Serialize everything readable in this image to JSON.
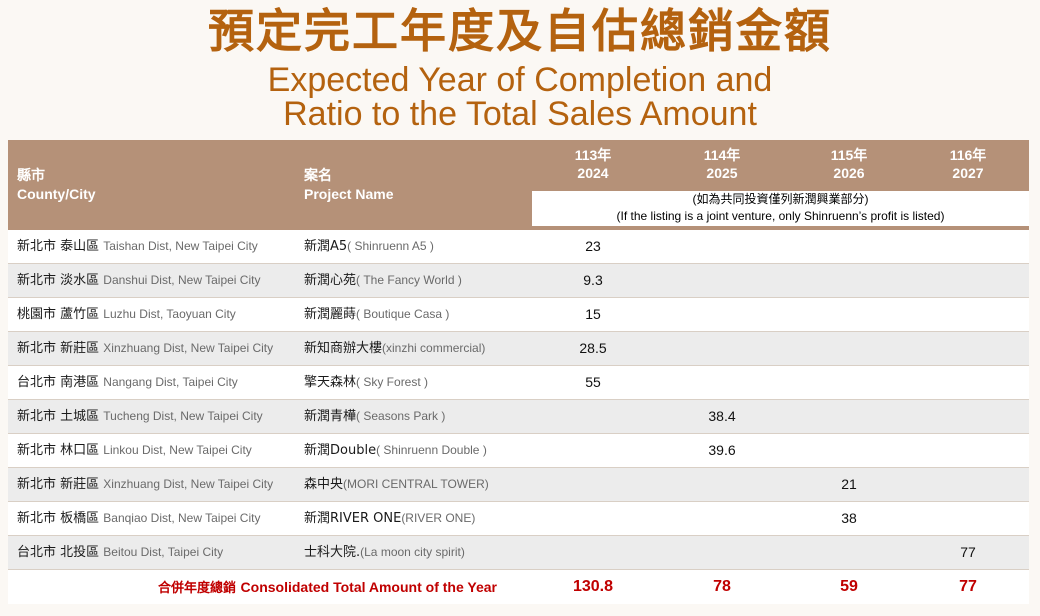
{
  "title": {
    "zh": "預定完工年度及自估總銷金額",
    "en_line1": "Expected Year of Completion and",
    "en_line2": "Ratio to the Total Sales Amount"
  },
  "table": {
    "headers": {
      "county_zh": "縣市",
      "county_en": "County/City",
      "project_zh": "案名",
      "project_en": "Project Name",
      "years": [
        {
          "roc": "113年",
          "ad": "2024"
        },
        {
          "roc": "114年",
          "ad": "2025"
        },
        {
          "roc": "115年",
          "ad": "2026"
        },
        {
          "roc": "116年",
          "ad": "2027"
        }
      ],
      "note_zh": "(如為共同投資僅列新潤興業部分)",
      "note_en": "(If the listing is a joint venture, only Shinruenn’s profit is listed)"
    },
    "rows": [
      {
        "county_zh": "新北市 泰山區",
        "county_en": "Taishan Dist, New Taipei City",
        "project_zh": "新潤A5",
        "project_en": "( Shinruenn A5 )",
        "v2024": "23",
        "v2025": "",
        "v2026": "",
        "v2027": ""
      },
      {
        "county_zh": "新北市 淡水區",
        "county_en": "Danshui Dist, New Taipei City",
        "project_zh": "新潤心苑",
        "project_en": "( The Fancy World )",
        "v2024": "9.3",
        "v2025": "",
        "v2026": "",
        "v2027": ""
      },
      {
        "county_zh": "桃園市 蘆竹區",
        "county_en": "Luzhu Dist, Taoyuan City",
        "project_zh": "新潤麗蒔",
        "project_en": "( Boutique Casa )",
        "v2024": "15",
        "v2025": "",
        "v2026": "",
        "v2027": ""
      },
      {
        "county_zh": "新北市 新莊區",
        "county_en": "Xinzhuang Dist, New Taipei City",
        "project_zh": "新知商辦大樓",
        "project_en": "(xinzhi commercial)",
        "v2024": "28.5",
        "v2025": "",
        "v2026": "",
        "v2027": ""
      },
      {
        "county_zh": "台北市 南港區",
        "county_en": "Nangang Dist, Taipei City",
        "project_zh": "擎天森林",
        "project_en": "( Sky Forest )",
        "v2024": "55",
        "v2025": "",
        "v2026": "",
        "v2027": ""
      },
      {
        "county_zh": "新北市 土城區",
        "county_en": "Tucheng Dist, New Taipei City",
        "project_zh": "新潤青樺",
        "project_en": "( Seasons Park )",
        "v2024": "",
        "v2025": "38.4",
        "v2026": "",
        "v2027": ""
      },
      {
        "county_zh": "新北市 林口區",
        "county_en": "Linkou Dist, New Taipei City",
        "project_zh": "新潤Double",
        "project_en": "( Shinruenn Double )",
        "v2024": "",
        "v2025": "39.6",
        "v2026": "",
        "v2027": ""
      },
      {
        "county_zh": "新北市 新莊區",
        "county_en": "Xinzhuang Dist, New Taipei City",
        "project_zh": "森中央",
        "project_en": "(MORI CENTRAL TOWER)",
        "v2024": "",
        "v2025": "",
        "v2026": "21",
        "v2027": ""
      },
      {
        "county_zh": "新北市 板橋區",
        "county_en": "Banqiao Dist, New Taipei City",
        "project_zh": "新潤RIVER ONE",
        "project_en": "(RIVER ONE)",
        "v2024": "",
        "v2025": "",
        "v2026": "38",
        "v2027": ""
      },
      {
        "county_zh": "台北市 北投區",
        "county_en": "Beitou Dist, Taipei City",
        "project_zh": "士科大院.",
        "project_en": "(La moon city spirit)",
        "v2024": "",
        "v2025": "",
        "v2026": "",
        "v2027": "77"
      }
    ],
    "total": {
      "label_zh": "合併年度總銷",
      "label_en": "Consolidated Total Amount of the Year",
      "v2024": "130.8",
      "v2025": "78",
      "v2026": "59",
      "v2027": "77"
    }
  },
  "colors": {
    "title": "#b4620f",
    "header_bg": "#b59178",
    "total_text": "#c00000",
    "row_alt": "#ececec"
  }
}
